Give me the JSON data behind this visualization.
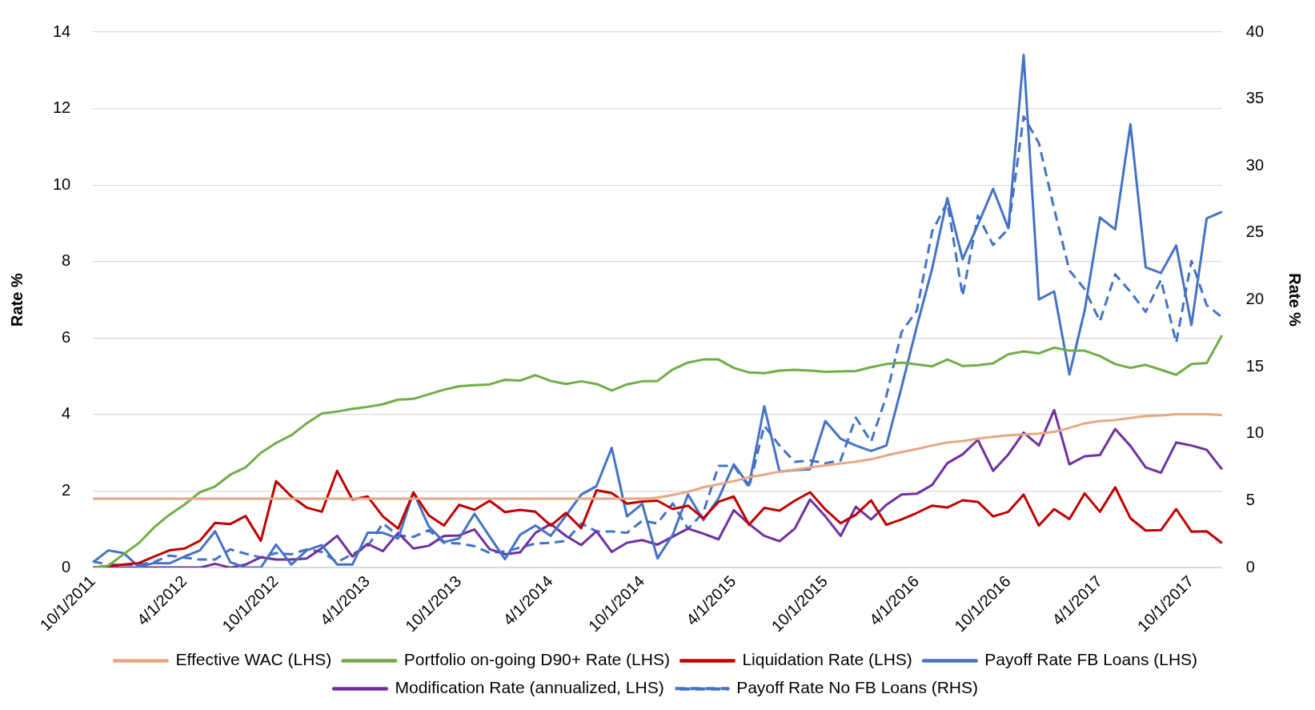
{
  "chart_data": {
    "type": "line",
    "categories": [
      "10/1/2011",
      null,
      null,
      null,
      null,
      null,
      "4/1/2012",
      null,
      null,
      null,
      null,
      null,
      "10/1/2012",
      null,
      null,
      null,
      null,
      null,
      "4/1/2013",
      null,
      null,
      null,
      null,
      null,
      "10/1/2013",
      null,
      null,
      null,
      null,
      null,
      "4/1/2014",
      null,
      null,
      null,
      null,
      null,
      "10/1/2014",
      null,
      null,
      null,
      null,
      null,
      "4/1/2015",
      null,
      null,
      null,
      null,
      null,
      "10/1/2015",
      null,
      null,
      null,
      null,
      null,
      "4/1/2016",
      null,
      null,
      null,
      null,
      null,
      "10/1/2016",
      null,
      null,
      null,
      null,
      null,
      "4/1/2017",
      null,
      null,
      null,
      null,
      null,
      "10/1/2017",
      null,
      null
    ],
    "series": [
      {
        "name": "Effective WAC (LHS)",
        "color": "#e6a882",
        "values": [
          1.8,
          1.8,
          1.8,
          1.8,
          1.8,
          1.8,
          1.8,
          1.8,
          1.8,
          1.8,
          1.8,
          1.8,
          1.8,
          1.8,
          1.8,
          1.8,
          1.8,
          1.8,
          1.8,
          1.8,
          1.8,
          1.8,
          1.8,
          1.8,
          1.8,
          1.8,
          1.8,
          1.8,
          1.8,
          1.8,
          1.8,
          1.8,
          1.8,
          1.8,
          1.8,
          1.8,
          1.8,
          1.83,
          1.9,
          1.98,
          2.1,
          2.18,
          2.26,
          2.36,
          2.43,
          2.51,
          2.56,
          2.62,
          2.67,
          2.72,
          2.77,
          2.83,
          2.93,
          3.02,
          3.1,
          3.19,
          3.27,
          3.31,
          3.37,
          3.42,
          3.46,
          3.48,
          3.5,
          3.55,
          3.65,
          3.77,
          3.83,
          3.86,
          3.91,
          3.96,
          3.98,
          4.01,
          4.01,
          4.01,
          3.99
        ]
      },
      {
        "name": "Portfolio on-going D90+ Rate (LHS)",
        "color": "#70ad47",
        "values": [
          0,
          0.05,
          0.35,
          0.64,
          1.05,
          1.38,
          1.65,
          1.97,
          2.12,
          2.43,
          2.62,
          3.0,
          3.26,
          3.46,
          3.77,
          4.03,
          4.08,
          4.15,
          4.2,
          4.27,
          4.39,
          4.41,
          4.53,
          4.65,
          4.74,
          4.77,
          4.79,
          4.91,
          4.89,
          5.03,
          4.88,
          4.8,
          4.87,
          4.8,
          4.63,
          4.79,
          4.87,
          4.88,
          5.18,
          5.36,
          5.44,
          5.44,
          5.22,
          5.1,
          5.08,
          5.15,
          5.17,
          5.15,
          5.12,
          5.13,
          5.14,
          5.24,
          5.32,
          5.36,
          5.31,
          5.26,
          5.44,
          5.27,
          5.29,
          5.34,
          5.58,
          5.65,
          5.6,
          5.75,
          5.67,
          5.67,
          5.53,
          5.32,
          5.22,
          5.3,
          5.17,
          5.04,
          5.32,
          5.35,
          6.07
        ]
      },
      {
        "name": "Liquidation Rate (LHS)",
        "color": "#c00000",
        "values": [
          0,
          0.04,
          0.08,
          0.12,
          0.29,
          0.45,
          0.5,
          0.7,
          1.17,
          1.14,
          1.35,
          0.7,
          2.26,
          1.86,
          1.57,
          1.46,
          2.53,
          1.78,
          1.86,
          1.34,
          1.02,
          1.96,
          1.37,
          1.1,
          1.64,
          1.51,
          1.75,
          1.45,
          1.51,
          1.46,
          1.1,
          1.43,
          1.03,
          2.02,
          1.95,
          1.67,
          1.73,
          1.75,
          1.53,
          1.62,
          1.29,
          1.72,
          1.86,
          1.12,
          1.56,
          1.49,
          1.75,
          1.97,
          1.52,
          1.16,
          1.38,
          1.76,
          1.12,
          1.26,
          1.43,
          1.62,
          1.57,
          1.76,
          1.72,
          1.34,
          1.46,
          1.91,
          1.1,
          1.53,
          1.27,
          1.94,
          1.46,
          2.1,
          1.29,
          0.97,
          0.98,
          1.53,
          0.94,
          0.95,
          0.64
        ]
      },
      {
        "name": "Payoff Rate FB Loans (LHS)",
        "color": "#4472c4",
        "values": [
          0.14,
          0.45,
          0.38,
          0.02,
          0.12,
          0.11,
          0.29,
          0.45,
          0.95,
          0.14,
          0,
          0,
          0.6,
          0.08,
          0.45,
          0.59,
          0.08,
          0.08,
          0.91,
          0.91,
          0.76,
          1.97,
          1.08,
          0.67,
          0.76,
          1.41,
          0.81,
          0.22,
          0.86,
          1.1,
          0.83,
          1.36,
          1.91,
          2.13,
          3.13,
          1.34,
          1.67,
          0.24,
          0.86,
          1.91,
          1.24,
          1.81,
          2.7,
          2.15,
          4.22,
          2.51,
          2.55,
          2.57,
          3.83,
          3.37,
          3.19,
          3.05,
          3.19,
          4.72,
          6.31,
          7.81,
          9.66,
          8.06,
          8.96,
          9.9,
          8.87,
          13.4,
          7.01,
          7.22,
          5.05,
          6.72,
          9.15,
          8.84,
          11.59,
          7.85,
          7.7,
          8.42,
          6.34,
          9.13,
          9.3
        ]
      },
      {
        "name": "Modification Rate (annualized, LHS)",
        "color": "#7030a0",
        "values": [
          0,
          0,
          0,
          0,
          0,
          0,
          0,
          0,
          0.1,
          0,
          0.08,
          0.27,
          0.21,
          0.21,
          0.24,
          0.51,
          0.83,
          0.29,
          0.62,
          0.43,
          0.91,
          0.5,
          0.57,
          0.83,
          0.84,
          1.0,
          0.48,
          0.35,
          0.4,
          0.91,
          1.14,
          0.83,
          0.59,
          0.95,
          0.41,
          0.65,
          0.72,
          0.6,
          0.81,
          1.02,
          0.89,
          0.74,
          1.5,
          1.14,
          0.83,
          0.69,
          1.02,
          1.78,
          1.34,
          0.83,
          1.59,
          1.26,
          1.64,
          1.91,
          1.93,
          2.16,
          2.73,
          2.96,
          3.34,
          2.53,
          2.96,
          3.53,
          3.19,
          4.12,
          2.7,
          2.91,
          2.94,
          3.62,
          3.18,
          2.62,
          2.48,
          3.27,
          3.19,
          3.08,
          2.57
        ]
      },
      {
        "name": "Payoff Rate No FB Loans (RHS)",
        "color": "#4472c4",
        "axis": "y2",
        "line_style": "dashed",
        "values": [
          0.46,
          0.22,
          0.22,
          0.22,
          0.41,
          0.9,
          0.74,
          0.6,
          0.6,
          1.36,
          1.04,
          0.76,
          1.09,
          1.0,
          1.36,
          1.17,
          0.41,
          1.0,
          1.6,
          3.3,
          2.4,
          2.3,
          2.8,
          1.85,
          1.8,
          1.6,
          1.1,
          1.2,
          1.5,
          1.8,
          1.85,
          2.0,
          3.3,
          2.7,
          2.7,
          2.6,
          3.5,
          3.3,
          4.8,
          2.9,
          4.1,
          7.6,
          7.6,
          6.0,
          10.6,
          9.1,
          7.9,
          8.0,
          7.8,
          8.0,
          11.2,
          9.4,
          12.8,
          17.6,
          19.2,
          25.1,
          27.3,
          20.3,
          26.3,
          24.1,
          25.3,
          33.7,
          31.7,
          26.8,
          22.2,
          20.8,
          18.4,
          21.9,
          20.6,
          19.1,
          21.5,
          16.8,
          22.9,
          19.6,
          18.7
        ]
      }
    ],
    "ylabel": "Rate %",
    "y2label": "Rate %",
    "ylim": [
      0,
      14
    ],
    "yticks": [
      0,
      2,
      4,
      6,
      8,
      10,
      12,
      14
    ],
    "y2lim": [
      0,
      40
    ],
    "y2ticks": [
      0,
      5,
      10,
      15,
      20,
      25,
      30,
      35,
      40
    ],
    "grid": "y",
    "legend": "bottom",
    "marker": "none",
    "line_style": "solid"
  }
}
